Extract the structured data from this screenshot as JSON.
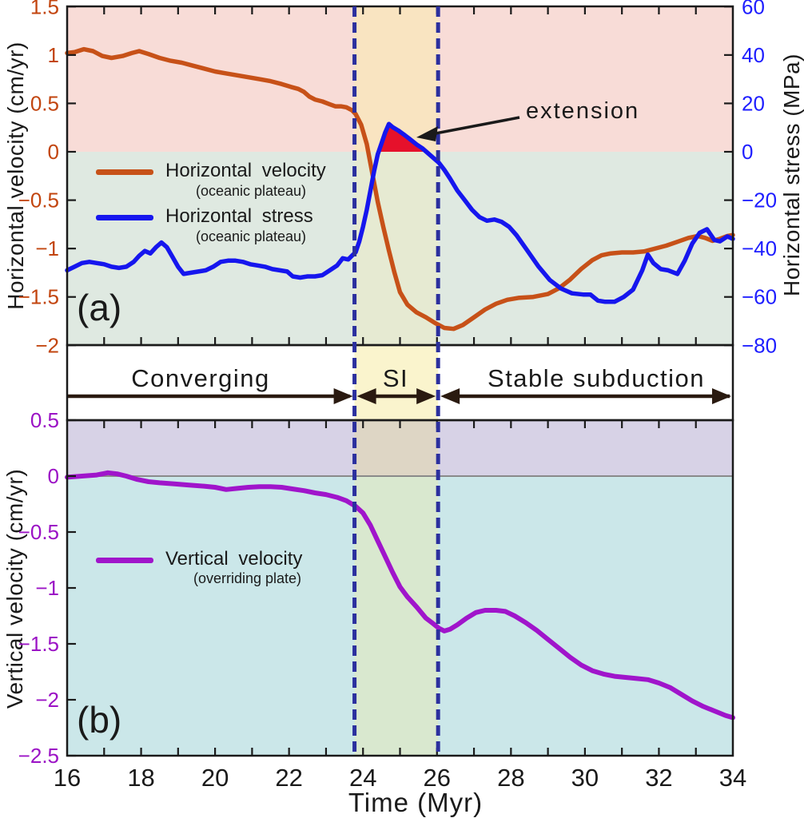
{
  "figure": {
    "xlabel": "Time (Myr)",
    "x_ticks": {
      "values": [
        16,
        18,
        20,
        22,
        24,
        26,
        28,
        30,
        32,
        34
      ],
      "labels": [
        "16",
        "18",
        "20",
        "22",
        "24",
        "26",
        "28",
        "30",
        "32",
        "34"
      ]
    },
    "x_minor_ticks": [
      17,
      18,
      19,
      20,
      21,
      22,
      23,
      24,
      25,
      26,
      27,
      28,
      29,
      30,
      31,
      32,
      33
    ],
    "xlim": [
      16,
      34
    ]
  },
  "panel_a": {
    "label": "(a)",
    "left_axis": {
      "title": "Horizontal velocity (cm/yr)",
      "ticks": {
        "values": [
          1.5,
          1,
          0.5,
          0,
          -0.5,
          -1,
          -1.5,
          -2
        ],
        "labels": [
          "1.5",
          "1",
          "0.5",
          "0",
          "−0.5",
          "−1",
          "−1.5",
          "−2"
        ]
      },
      "ylim": [
        -2,
        1.5
      ]
    },
    "right_axis": {
      "title": "Horizontal stress (MPa)",
      "ticks": {
        "values": [
          60,
          40,
          20,
          0,
          -20,
          -40,
          -60,
          -80
        ],
        "labels": [
          "60",
          "40",
          "20",
          "0",
          "−20",
          "−40",
          "−60",
          "−80"
        ]
      },
      "ylim": [
        -80,
        60
      ]
    },
    "legend": [
      {
        "label": "Horizontal velocity",
        "sub": "(oceanic plateau)"
      },
      {
        "label": "Horizontal stress",
        "sub": "(oceanic plateau)"
      }
    ],
    "annotation": {
      "text": "extension"
    }
  },
  "strip": {
    "si_start_myr": 23.77,
    "si_end_myr": 26.03,
    "phases": [
      {
        "label": "Converging"
      },
      {
        "label": "SI"
      },
      {
        "label": "Stable subduction"
      }
    ]
  },
  "panel_b": {
    "label": "(b)",
    "axis": {
      "title": "Vertical velocity (cm/yr)",
      "ticks": {
        "values": [
          0.5,
          0,
          -0.5,
          -1,
          -1.5,
          -2,
          -2.5
        ],
        "labels": [
          "0.5",
          "0",
          "−0.5",
          "−1",
          "−1.5",
          "−2",
          "−2.5"
        ]
      },
      "ylim": [
        -2.5,
        0.5
      ]
    },
    "legend": [
      {
        "label": "Vertical velocity",
        "sub": "(overriding plate)"
      }
    ]
  },
  "colors": {
    "frame": "#1a1a1a",
    "panel_a_bg_above": "#f8dcd7",
    "panel_a_bg_below": "#dfe9e1",
    "si_band_a_above": "#f9e4c1",
    "si_band_a_below": "#e6ead2",
    "strip_band": "#faf4cd",
    "panel_b_bg_above": "#d7d2e6",
    "panel_b_bg_below": "#cbe7e9",
    "si_band_b_above": "#ded6c5",
    "si_band_b_below": "#d9e8cf",
    "extension_fill": "#e6112b",
    "dashed_line": "#2b2f9e",
    "zero_line": "#8a8a8a",
    "phase_arrow": "#2a1a10",
    "annotation_arrow": "#1a1a1a",
    "a_left_labels": "#c2450f",
    "a_right_labels": "#1e1eff",
    "b_labels": "#9b12c5",
    "x_labels": "#1a1a1a"
  },
  "chart_data": [
    {
      "type": "line",
      "panel": "a",
      "xlabel": "Time (Myr)",
      "xlim": [
        16,
        34
      ],
      "left_ylabel": "Horizontal velocity (cm/yr)",
      "left_ylim": [
        -2,
        1.5
      ],
      "right_ylabel": "Horizontal stress (MPa)",
      "right_ylim": [
        -80,
        60
      ],
      "si_interval_myr": [
        23.77,
        26.03
      ],
      "annotations": [
        "extension"
      ],
      "legend_position": "mid-left",
      "series": [
        {
          "name": "Horizontal velocity (oceanic plateau)",
          "axis": "left",
          "units": "cm/yr",
          "color": "#c75118",
          "x": [
            16,
            16.2,
            16.45,
            16.7,
            16.95,
            17.2,
            17.5,
            17.75,
            17.95,
            18.2,
            18.5,
            18.8,
            19.1,
            19.4,
            19.7,
            20,
            20.3,
            20.6,
            20.9,
            21.2,
            21.5,
            21.8,
            22.05,
            22.25,
            22.4,
            22.55,
            22.7,
            22.9,
            23.1,
            23.25,
            23.4,
            23.55,
            23.7,
            23.8,
            23.95,
            24.1,
            24.25,
            24.4,
            24.55,
            24.7,
            24.85,
            25,
            25.2,
            25.45,
            25.7,
            25.95,
            26.2,
            26.45,
            26.7,
            27,
            27.3,
            27.6,
            27.9,
            28.2,
            28.6,
            29,
            29.3,
            29.6,
            29.9,
            30.2,
            30.45,
            30.7,
            31,
            31.3,
            31.6,
            31.9,
            32.2,
            32.5,
            32.8,
            33.05,
            33.25,
            33.45,
            33.65,
            33.85,
            34
          ],
          "y": [
            1.02,
            1.03,
            1.06,
            1.04,
            0.99,
            0.97,
            0.99,
            1.02,
            1.04,
            1.01,
            0.97,
            0.94,
            0.92,
            0.89,
            0.86,
            0.83,
            0.81,
            0.79,
            0.77,
            0.75,
            0.73,
            0.7,
            0.67,
            0.65,
            0.62,
            0.57,
            0.54,
            0.52,
            0.49,
            0.47,
            0.47,
            0.46,
            0.43,
            0.39,
            0.28,
            0.08,
            -0.22,
            -0.52,
            -0.78,
            -1.02,
            -1.25,
            -1.45,
            -1.58,
            -1.66,
            -1.71,
            -1.77,
            -1.82,
            -1.83,
            -1.79,
            -1.71,
            -1.63,
            -1.57,
            -1.53,
            -1.51,
            -1.5,
            -1.47,
            -1.41,
            -1.32,
            -1.21,
            -1.12,
            -1.07,
            -1.05,
            -1.04,
            -1.04,
            -1.03,
            -1.0,
            -0.97,
            -0.93,
            -0.89,
            -0.87,
            -0.89,
            -0.92,
            -0.9,
            -0.87,
            -0.86
          ]
        },
        {
          "name": "Horizontal stress (oceanic plateau)",
          "axis": "right",
          "units": "MPa",
          "color": "#1616ee",
          "x": [
            16,
            16.2,
            16.4,
            16.6,
            16.8,
            17,
            17.2,
            17.4,
            17.6,
            17.8,
            17.95,
            18.1,
            18.25,
            18.4,
            18.55,
            18.7,
            18.85,
            19,
            19.15,
            19.35,
            19.55,
            19.75,
            19.95,
            20.15,
            20.35,
            20.55,
            20.75,
            20.95,
            21.15,
            21.35,
            21.55,
            21.75,
            21.95,
            22.1,
            22.3,
            22.5,
            22.7,
            22.9,
            23.1,
            23.3,
            23.45,
            23.6,
            23.7,
            23.8,
            23.9,
            24,
            24.1,
            24.2,
            24.3,
            24.4,
            24.5,
            24.6,
            24.7,
            24.8,
            24.95,
            25.1,
            25.25,
            25.45,
            25.6,
            25.75,
            25.9,
            26.05,
            26.2,
            26.35,
            26.55,
            26.75,
            26.95,
            27.15,
            27.35,
            27.55,
            27.75,
            27.95,
            28.15,
            28.45,
            28.75,
            29.05,
            29.35,
            29.65,
            29.95,
            30.15,
            30.35,
            30.55,
            30.8,
            31.05,
            31.3,
            31.55,
            31.7,
            31.85,
            32.05,
            32.25,
            32.5,
            32.7,
            32.9,
            33.1,
            33.3,
            33.5,
            33.65,
            33.85,
            34
          ],
          "y": [
            -49,
            -47.5,
            -46,
            -45.5,
            -46,
            -46.5,
            -47.5,
            -48,
            -47.5,
            -45.5,
            -43,
            -41,
            -42,
            -39.5,
            -37.5,
            -39.5,
            -43.5,
            -47.5,
            -50.5,
            -50,
            -49.5,
            -49,
            -47.5,
            -45.5,
            -45,
            -45,
            -45.5,
            -46.5,
            -47,
            -47.5,
            -48.5,
            -49,
            -49.5,
            -51.5,
            -52,
            -51.5,
            -51.5,
            -51,
            -49,
            -47,
            -44,
            -44.5,
            -43,
            -41.5,
            -37,
            -31,
            -24,
            -16,
            -8,
            -1,
            3.5,
            8,
            11.5,
            10.2,
            8.8,
            7.2,
            5.4,
            3,
            1.5,
            -0.5,
            -2.5,
            -4.5,
            -7.5,
            -11,
            -16,
            -20,
            -24,
            -27,
            -28.5,
            -28,
            -29,
            -31,
            -34.5,
            -41,
            -47.5,
            -53,
            -56.5,
            -58.5,
            -59,
            -59,
            -61.5,
            -62,
            -62,
            -60,
            -57,
            -49,
            -42.5,
            -46,
            -48.5,
            -49,
            -50.5,
            -45,
            -38,
            -33.5,
            -32,
            -36.5,
            -37,
            -35,
            -36
          ]
        }
      ]
    },
    {
      "type": "line",
      "panel": "b",
      "xlabel": "Time (Myr)",
      "xlim": [
        16,
        34
      ],
      "ylabel": "Vertical velocity (cm/yr)",
      "ylim": [
        -2.5,
        0.5
      ],
      "si_interval_myr": [
        23.77,
        26.03
      ],
      "legend_position": "mid-left",
      "series": [
        {
          "name": "Vertical velocity (overriding plate)",
          "units": "cm/yr",
          "color": "#a015cb",
          "x": [
            16,
            16.4,
            16.8,
            17.1,
            17.35,
            17.6,
            17.9,
            18.2,
            18.5,
            18.9,
            19.3,
            19.7,
            20,
            20.3,
            20.6,
            20.9,
            21.2,
            21.5,
            21.8,
            22.1,
            22.4,
            22.7,
            23,
            23.3,
            23.55,
            23.8,
            24,
            24.2,
            24.4,
            24.6,
            24.8,
            25,
            25.2,
            25.45,
            25.7,
            25.9,
            26.05,
            26.2,
            26.35,
            26.55,
            26.8,
            27.05,
            27.3,
            27.6,
            27.85,
            28.1,
            28.4,
            28.7,
            29,
            29.3,
            29.6,
            29.9,
            30.2,
            30.5,
            30.8,
            31.1,
            31.4,
            31.7,
            32,
            32.3,
            32.6,
            32.9,
            33.2,
            33.5,
            33.8,
            34
          ],
          "y": [
            -0.01,
            0,
            0.01,
            0.03,
            0.02,
            0,
            -0.03,
            -0.05,
            -0.06,
            -0.07,
            -0.08,
            -0.09,
            -0.1,
            -0.12,
            -0.11,
            -0.1,
            -0.095,
            -0.095,
            -0.1,
            -0.115,
            -0.13,
            -0.15,
            -0.165,
            -0.19,
            -0.22,
            -0.27,
            -0.33,
            -0.44,
            -0.58,
            -0.72,
            -0.86,
            -0.99,
            -1.08,
            -1.17,
            -1.27,
            -1.32,
            -1.36,
            -1.385,
            -1.37,
            -1.33,
            -1.27,
            -1.22,
            -1.2,
            -1.2,
            -1.21,
            -1.25,
            -1.31,
            -1.38,
            -1.46,
            -1.54,
            -1.62,
            -1.69,
            -1.74,
            -1.77,
            -1.79,
            -1.8,
            -1.81,
            -1.82,
            -1.85,
            -1.89,
            -1.95,
            -2.01,
            -2.06,
            -2.1,
            -2.14,
            -2.16
          ]
        }
      ]
    }
  ]
}
